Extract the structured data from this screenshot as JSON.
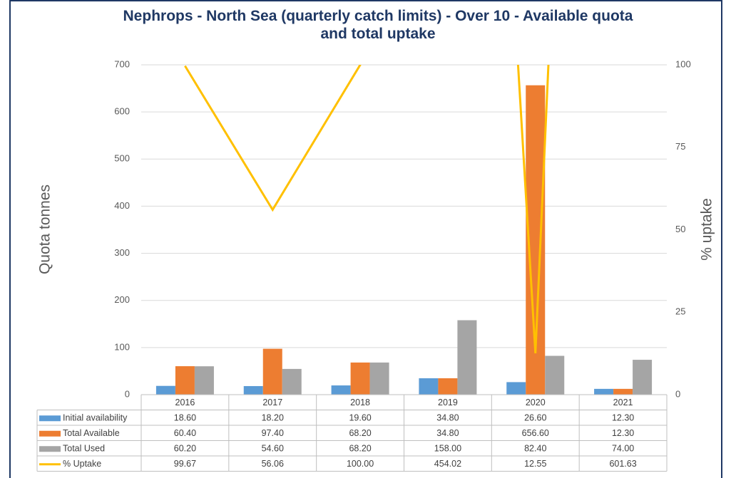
{
  "chart_data": {
    "type": "bar",
    "title": "Nephrops - North Sea (quarterly catch limits) - Over 10 - Available quota and total uptake",
    "ylabel": "Quota tonnes",
    "y2label": "% uptake",
    "categories": [
      "2016",
      "2017",
      "2018",
      "2019",
      "2020",
      "2021"
    ],
    "ylim": [
      0,
      700
    ],
    "yticks": [
      0,
      100,
      200,
      300,
      400,
      500,
      600,
      700
    ],
    "y2lim": [
      0,
      100
    ],
    "y2ticks": [
      0,
      25,
      50,
      75,
      100
    ],
    "grid": true,
    "series": [
      {
        "name": "Initial availability",
        "color": "#5b9bd5",
        "values": [
          18.6,
          18.2,
          19.6,
          34.8,
          26.6,
          12.3
        ],
        "value_labels": [
          "18.60",
          "18.20",
          "19.60",
          "34.80",
          "26.60",
          "12.30"
        ]
      },
      {
        "name": "Total Available",
        "color": "#ed7d31",
        "values": [
          60.4,
          97.4,
          68.2,
          34.8,
          656.6,
          12.3
        ],
        "value_labels": [
          "60.40",
          "97.40",
          "68.20",
          "34.80",
          "656.60",
          "12.30"
        ]
      },
      {
        "name": "Total Used",
        "color": "#a5a5a5",
        "values": [
          60.2,
          54.6,
          68.2,
          158,
          82.4,
          74
        ],
        "value_labels": [
          "60.20",
          "54.60",
          "68.20",
          "158.00",
          "82.40",
          "74.00"
        ]
      },
      {
        "name": "% Uptake",
        "color": "#ffc000",
        "type": "line",
        "axis": "y2",
        "values": [
          99.67,
          56.06,
          100,
          454.02,
          12.55,
          601.63
        ],
        "value_labels": [
          "99.67",
          "56.06",
          "100.00",
          "454.02",
          "12.55",
          "601.63"
        ]
      }
    ]
  }
}
